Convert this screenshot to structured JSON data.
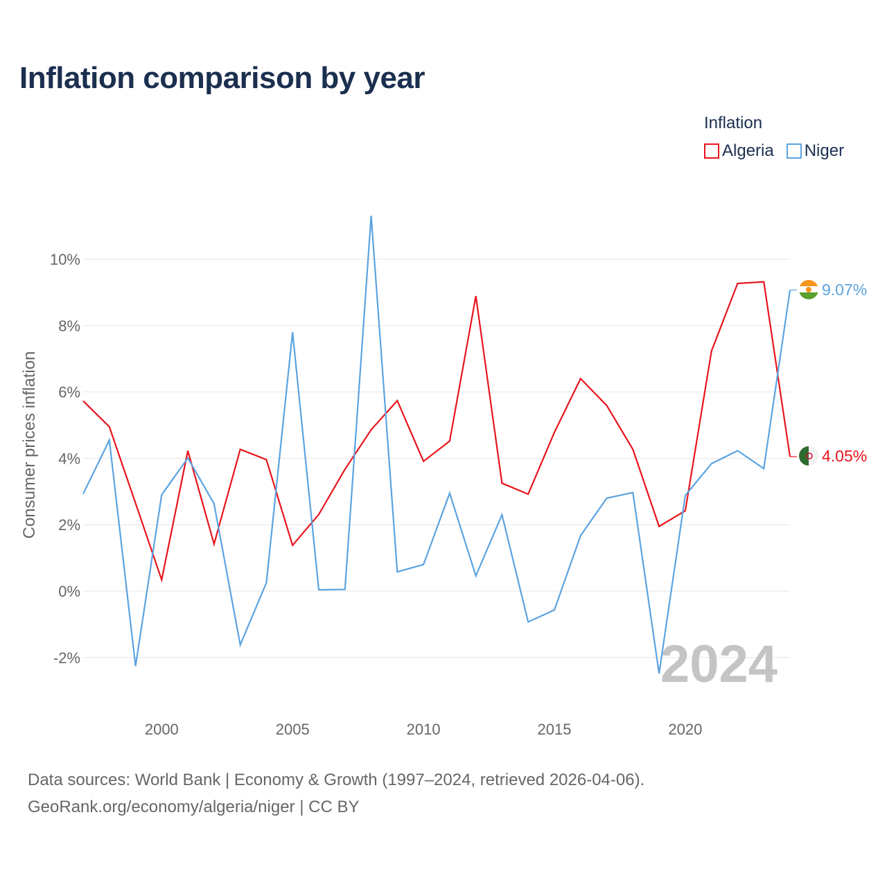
{
  "title": "Inflation comparison by year",
  "legend": {
    "title": "Inflation",
    "items": [
      {
        "label": "Algeria",
        "color": "#e8141c"
      },
      {
        "label": "Niger",
        "color": "#5ba3e0"
      }
    ]
  },
  "watermark_year": "2024",
  "end_labels": {
    "niger": "9.07%",
    "algeria": "4.05%"
  },
  "footer": {
    "line1": "Data sources: World Bank | Economy & Growth (1997–2024, retrieved 2026-04-06).",
    "line2": "GeoRank.org/economy/algeria/niger | CC BY"
  },
  "chart_data": {
    "type": "line",
    "title": "Inflation comparison by year",
    "xlabel": "",
    "ylabel": "Consumer prices inflation",
    "x": [
      1997,
      1998,
      1999,
      2000,
      2001,
      2002,
      2003,
      2004,
      2005,
      2006,
      2007,
      2008,
      2009,
      2010,
      2011,
      2012,
      2013,
      2014,
      2015,
      2016,
      2017,
      2018,
      2019,
      2020,
      2021,
      2022,
      2023,
      2024
    ],
    "xlim": [
      1997,
      2024
    ],
    "ylim": [
      -3,
      11
    ],
    "x_ticks": [
      2000,
      2005,
      2010,
      2015,
      2020
    ],
    "y_ticks": [
      -2,
      0,
      2,
      4,
      6,
      8,
      10
    ],
    "y_tick_labels": [
      "-2%",
      "0%",
      "2%",
      "4%",
      "6%",
      "8%",
      "10%"
    ],
    "grid": true,
    "legend_position": "top-right",
    "series": [
      {
        "name": "Algeria",
        "color": "#e8141c",
        "values": [
          5.73,
          4.95,
          2.65,
          0.34,
          4.23,
          1.42,
          4.27,
          3.96,
          1.38,
          2.31,
          3.67,
          4.86,
          5.74,
          3.91,
          4.52,
          8.89,
          3.25,
          2.92,
          4.78,
          6.4,
          5.59,
          4.27,
          1.95,
          2.42,
          7.23,
          9.27,
          9.32,
          4.05
        ]
      },
      {
        "name": "Niger",
        "color": "#5ba3e0",
        "values": [
          2.93,
          4.55,
          -2.26,
          2.9,
          4.01,
          2.63,
          -1.62,
          0.25,
          7.8,
          0.04,
          0.05,
          11.31,
          0.58,
          0.8,
          2.95,
          0.46,
          2.3,
          -0.93,
          -0.57,
          1.67,
          2.8,
          2.97,
          -2.48,
          2.88,
          3.84,
          4.23,
          3.69,
          9.07
        ]
      }
    ]
  }
}
